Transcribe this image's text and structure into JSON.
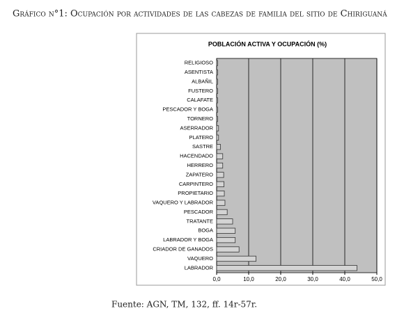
{
  "document": {
    "heading": "Gráfico n°1: Ocupación por actividades de las cabezas de familia del sitio de Chiriguaná",
    "source": "Fuente: AGN, TM, 132, ff. 14r-57r."
  },
  "chart_data": {
    "type": "bar",
    "orientation": "horizontal",
    "title": "POBLACIÓN ACTIVA Y OCUPACIÓN (%)",
    "categories": [
      "RELIGIOSO",
      "ASENTISTA",
      "ALBAÑIL",
      "FUSTERO",
      "CALAFATE",
      "PESCADOR Y BOGA",
      "TORNERO",
      "ASERRADOR",
      "PLATERO",
      "SASTRE",
      "HACENDADO",
      "HERRERO",
      "ZAPATERO",
      "CARPINTERO",
      "PROPIETARIO",
      "VAQUERO Y LABRADOR",
      "PESCADOR",
      "TRATANTE",
      "BOGA",
      "LABRADOR Y BOGA",
      "CRIADOR DE GANADOS",
      "VAQUERO",
      "LABRADOR"
    ],
    "values": [
      0.3,
      0.3,
      0.3,
      0.3,
      0.3,
      0.3,
      0.3,
      0.6,
      0.6,
      1.2,
      1.9,
      1.9,
      2.2,
      2.3,
      2.4,
      2.6,
      3.3,
      5.0,
      5.8,
      5.8,
      7.0,
      12.3,
      43.8
    ],
    "color": "#d4d4d4",
    "plot_background": "#c0c0c0",
    "xlim": [
      0,
      50
    ],
    "xticks": [
      {
        "value": 0,
        "label": "0,0"
      },
      {
        "value": 10,
        "label": "10,0"
      },
      {
        "value": 20,
        "label": "20,0"
      },
      {
        "value": 30,
        "label": "30,0"
      },
      {
        "value": 40,
        "label": "40,0"
      },
      {
        "value": 50,
        "label": "50,0"
      }
    ],
    "grid": true
  }
}
